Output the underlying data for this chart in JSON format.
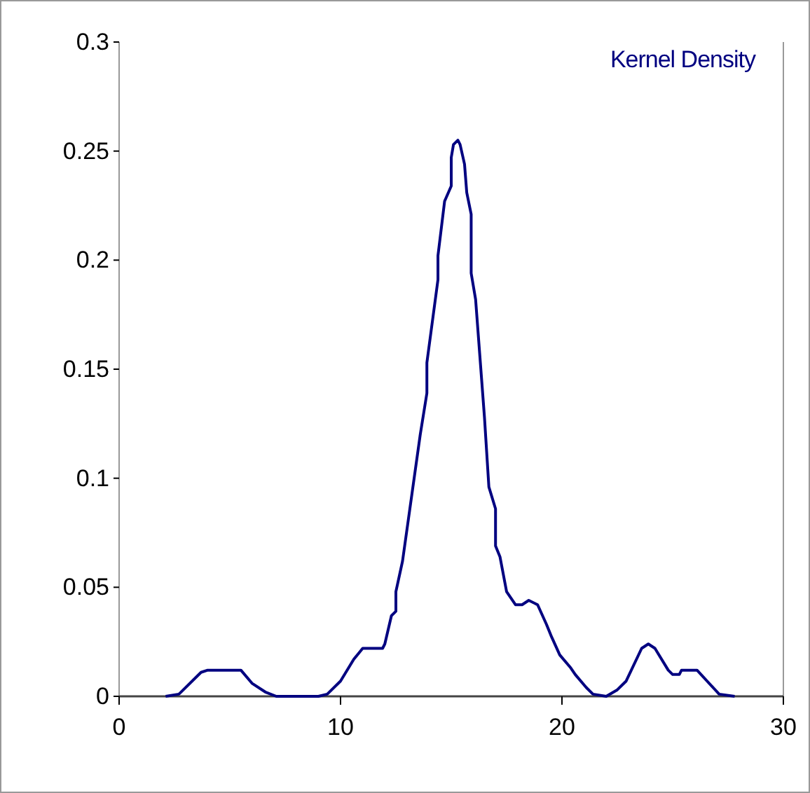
{
  "chart_data": {
    "type": "line",
    "series": [
      {
        "name": "Kernel Density",
        "color": "#000080",
        "x": [
          2.1,
          2.7,
          3.7,
          4.0,
          5.5,
          6.0,
          6.6,
          7.1,
          9.0,
          9.4,
          10.0,
          10.6,
          11.0,
          11.9,
          12.0,
          12.3,
          12.5,
          12.5,
          12.8,
          13.6,
          13.9,
          13.9,
          14.4,
          14.4,
          14.7,
          15.0,
          15.0,
          15.1,
          15.3,
          15.4,
          15.6,
          15.7,
          15.9,
          15.9,
          16.1,
          16.5,
          16.7,
          17.0,
          17.0,
          17.2,
          17.5,
          17.9,
          18.2,
          18.5,
          18.9,
          19.3,
          19.5,
          19.9,
          20.4,
          20.6,
          21.1,
          21.4,
          22.0,
          22.5,
          22.9,
          23.6,
          23.9,
          24.2,
          24.8,
          25.0,
          25.3,
          25.4,
          26.1,
          27.1,
          27.8
        ],
        "values": [
          0,
          0.001,
          0.011,
          0.012,
          0.012,
          0.006,
          0.002,
          0,
          0,
          0.001,
          0.007,
          0.017,
          0.022,
          0.022,
          0.024,
          0.037,
          0.039,
          0.048,
          0.062,
          0.12,
          0.139,
          0.153,
          0.191,
          0.202,
          0.227,
          0.234,
          0.247,
          0.253,
          0.255,
          0.253,
          0.244,
          0.231,
          0.221,
          0.194,
          0.182,
          0.128,
          0.096,
          0.086,
          0.069,
          0.064,
          0.048,
          0.042,
          0.042,
          0.044,
          0.042,
          0.033,
          0.028,
          0.019,
          0.013,
          0.01,
          0.004,
          0.001,
          0,
          0.003,
          0.007,
          0.022,
          0.024,
          0.022,
          0.012,
          0.01,
          0.01,
          0.012,
          0.012,
          0.001,
          0
        ]
      }
    ],
    "xlim": [
      0,
      30
    ],
    "xticks": [
      0,
      10,
      20,
      30
    ],
    "ylim": [
      0,
      0.3
    ],
    "yticks": [
      0,
      0.05,
      0.1,
      0.15,
      0.2,
      0.25,
      0.3
    ],
    "legend": "top right",
    "grid": false,
    "marker": "none",
    "line_style": "solid"
  }
}
